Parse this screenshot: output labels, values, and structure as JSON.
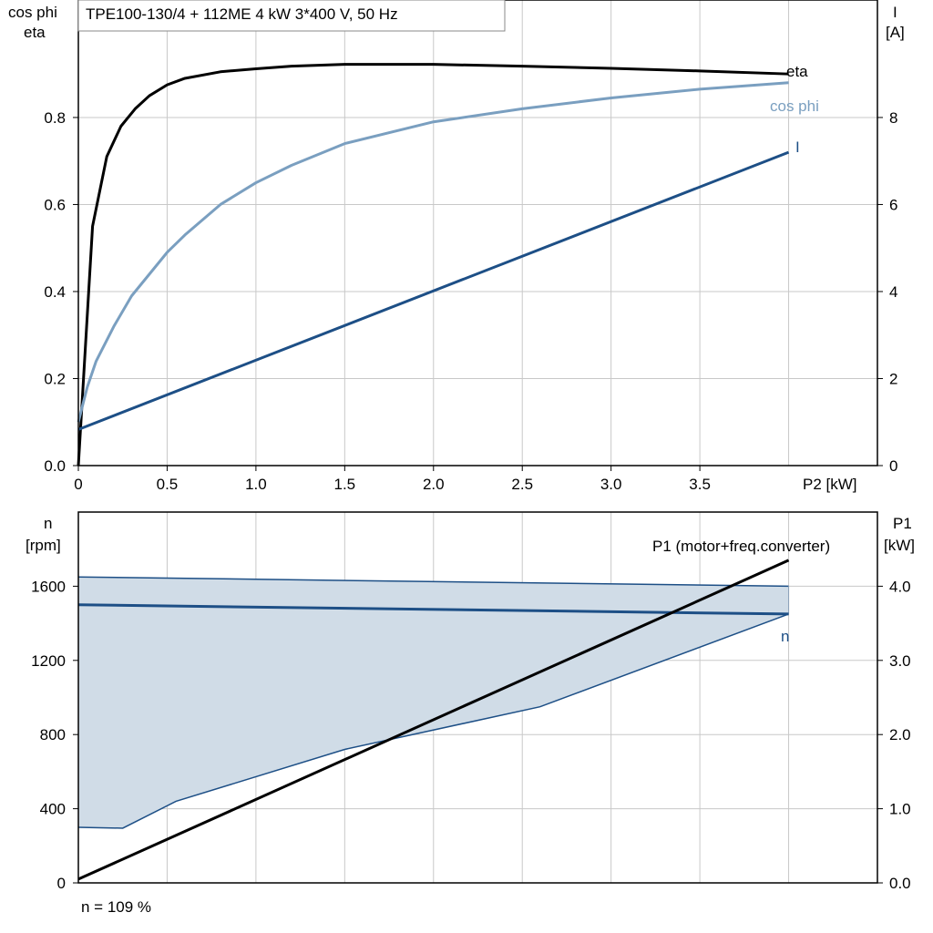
{
  "title": "TPE100-130/4 + 112ME   4 kW   3*400 V, 50 Hz",
  "footer": "n = 109 %",
  "colors": {
    "eta": "#000000",
    "cos_phi": "#7a9fc0",
    "I": "#1d4f86",
    "n": "#1d4f86",
    "band_fill": "#d0dce7",
    "P1": "#000000",
    "grid": "#c8c8c8"
  },
  "chart_data": [
    {
      "type": "line",
      "xlabel": "P2 [kW]",
      "ylabel_left": [
        "cos phi",
        "eta"
      ],
      "ylabel_right": [
        "I",
        "[A]"
      ],
      "xlim": [
        0,
        4.5
      ],
      "ylim_left": [
        0,
        1.07
      ],
      "ylim_right": [
        0,
        10.7
      ],
      "x_ticks": [
        "0",
        "0.5",
        "1.0",
        "1.5",
        "2.0",
        "2.5",
        "3.0",
        "3.5"
      ],
      "y_ticks_left": [
        "0.0",
        "0.2",
        "0.4",
        "0.6",
        "0.8"
      ],
      "y_ticks_right": [
        "0",
        "2",
        "4",
        "6",
        "8"
      ],
      "grid": true,
      "series": [
        {
          "name": "eta",
          "axis": "left",
          "x": [
            0,
            0.08,
            0.16,
            0.24,
            0.32,
            0.4,
            0.5,
            0.6,
            0.8,
            1.0,
            1.2,
            1.5,
            2.0,
            2.5,
            3.0,
            3.5,
            4.0
          ],
          "y": [
            0.0,
            0.55,
            0.71,
            0.78,
            0.82,
            0.85,
            0.875,
            0.89,
            0.905,
            0.912,
            0.918,
            0.922,
            0.922,
            0.918,
            0.913,
            0.907,
            0.9
          ]
        },
        {
          "name": "cos phi",
          "axis": "left",
          "x": [
            0,
            0.05,
            0.1,
            0.2,
            0.3,
            0.4,
            0.5,
            0.6,
            0.8,
            1.0,
            1.2,
            1.5,
            2.0,
            2.5,
            3.0,
            3.5,
            4.0
          ],
          "y": [
            0.1,
            0.18,
            0.24,
            0.32,
            0.39,
            0.44,
            0.49,
            0.53,
            0.6,
            0.65,
            0.69,
            0.74,
            0.79,
            0.82,
            0.845,
            0.865,
            0.88
          ]
        },
        {
          "name": "I",
          "axis": "right",
          "x": [
            0,
            4.0
          ],
          "y": [
            0.83,
            7.2
          ]
        }
      ]
    },
    {
      "type": "line",
      "xlabel": "",
      "ylabel_left": [
        "n",
        "[rpm]"
      ],
      "ylabel_right": [
        "P1",
        "[kW]"
      ],
      "xlim": [
        0,
        4.5
      ],
      "ylim_left": [
        0,
        2000
      ],
      "ylim_right": [
        0,
        5.0
      ],
      "y_ticks_left": [
        "0",
        "400",
        "800",
        "1200",
        "1600"
      ],
      "y_ticks_right": [
        "0.0",
        "1.0",
        "2.0",
        "3.0",
        "4.0"
      ],
      "grid": true,
      "band": {
        "upper": {
          "x": [
            0,
            4.0
          ],
          "y": [
            1650,
            1600
          ]
        },
        "lower": {
          "x": [
            0,
            0.25,
            0.55,
            1.5,
            2.6,
            4.0
          ],
          "y": [
            300,
            295,
            440,
            720,
            950,
            1450
          ]
        }
      },
      "series": [
        {
          "name": "n",
          "axis": "left",
          "x": [
            0,
            4.0
          ],
          "y": [
            1500,
            1450
          ]
        },
        {
          "name": "P1 (motor+freq.converter)",
          "axis": "right",
          "x": [
            0,
            4.0
          ],
          "y": [
            0.05,
            4.35
          ]
        }
      ]
    }
  ]
}
